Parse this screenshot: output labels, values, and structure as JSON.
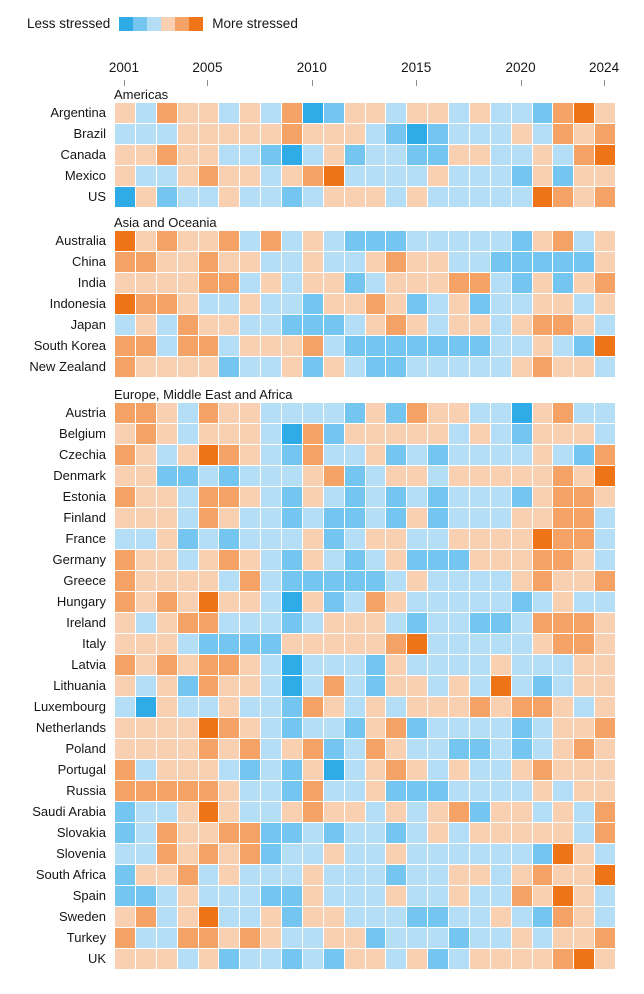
{
  "legend": {
    "less_label": "Less stressed",
    "more_label": "More stressed",
    "levels": [
      "#2fabe8",
      "#74c6f0",
      "#b3def6",
      "#f9d0b2",
      "#f5a267",
      "#ef7418"
    ]
  },
  "axis": {
    "ticks": [
      {
        "label": "2001",
        "col": 1
      },
      {
        "label": "2005",
        "col": 5
      },
      {
        "label": "2010",
        "col": 10
      },
      {
        "label": "2015",
        "col": 15
      },
      {
        "label": "2020",
        "col": 20
      },
      {
        "label": "2024",
        "col": 24
      }
    ]
  },
  "chart_data": {
    "type": "heatmap",
    "x_years": {
      "start": 2001,
      "end": 2024,
      "count": 24
    },
    "value_encoding": "each character is the stress level for one year, 1 = least stressed (strong blue) to 6 = most stressed (strong orange)",
    "palette": {
      "1": "#2fabe8",
      "2": "#74c6f0",
      "3": "#b3def6",
      "4": "#f9d0b2",
      "5": "#f5a267",
      "6": "#ef7418"
    },
    "sections": [
      {
        "label": "Americas",
        "rows": [
          {
            "country": "Argentina",
            "values": "435443435124434434332564"
          },
          {
            "country": "Brazil",
            "values": "333444445444321233343545"
          },
          {
            "country": "Canada",
            "values": "445443321342332244334356"
          },
          {
            "country": "Mexico",
            "values": "433454434563333433324244"
          },
          {
            "country": "US",
            "values": "142334332344434333336545"
          }
        ]
      },
      {
        "label": "Asia and Oceania",
        "rows": [
          {
            "country": "Australia",
            "values": "645445353432223333324534"
          },
          {
            "country": "China",
            "values": "554454433433454433222224"
          },
          {
            "country": "India",
            "values": "444455343442344455324245"
          },
          {
            "country": "Indonesia",
            "values": "655433433244542342334434"
          },
          {
            "country": "Japan",
            "values": "343544332223454344345543"
          },
          {
            "country": "South Korea",
            "values": "553553444532222222334326"
          },
          {
            "country": "New Zealand",
            "values": "544442334243223333345443"
          }
        ]
      },
      {
        "label": "Europe, Middle East and Africa",
        "rows": [
          {
            "country": "Austria",
            "values": "554354433332425443314533"
          },
          {
            "country": "Belgium",
            "values": "454344431524444434324443"
          },
          {
            "country": "Czechia",
            "values": "543465432533423233334325"
          },
          {
            "country": "Denmark",
            "values": "442232333452344344444546"
          },
          {
            "country": "Estonia",
            "values": "544355432432323233324554"
          },
          {
            "country": "Finland",
            "values": "444354332322324233344553"
          },
          {
            "country": "France",
            "values": "334232333423443344446553"
          },
          {
            "country": "Germany",
            "values": "544345432432342224445543"
          },
          {
            "country": "Greece",
            "values": "544443532222234333345445"
          },
          {
            "country": "Hungary",
            "values": "545464431423543333323433"
          },
          {
            "country": "Ireland",
            "values": "434553332344432332235554"
          },
          {
            "country": "Italy",
            "values": "444322224444456333334554"
          },
          {
            "country": "Latvia",
            "values": "545455431333243333433344"
          },
          {
            "country": "Lithuania",
            "values": "434254431353244343632344"
          },
          {
            "country": "Luxembourg",
            "values": "314334332543434445455434"
          },
          {
            "country": "Netherlands",
            "values": "444465432332452333323445"
          },
          {
            "country": "Poland",
            "values": "444454534523543322323454"
          },
          {
            "country": "Portugal",
            "values": "534443232413454343345444"
          },
          {
            "country": "Russia",
            "values": "555554332533422233334344"
          },
          {
            "country": "Saudi Arabia",
            "values": "233464334544343452443435"
          },
          {
            "country": "Slovakia",
            "values": "235445522323323434444435"
          },
          {
            "country": "Slovenia",
            "values": "335454523343343333332643"
          },
          {
            "country": "South Africa",
            "values": "244534333433323344345446"
          },
          {
            "country": "Spain",
            "values": "223433322433343343354643"
          },
          {
            "country": "Sweden",
            "values": "453463342443332233432543"
          },
          {
            "country": "Turkey",
            "values": "533554543344233323343445"
          },
          {
            "country": "UK",
            "values": "444342332324434234444564"
          }
        ]
      }
    ]
  }
}
